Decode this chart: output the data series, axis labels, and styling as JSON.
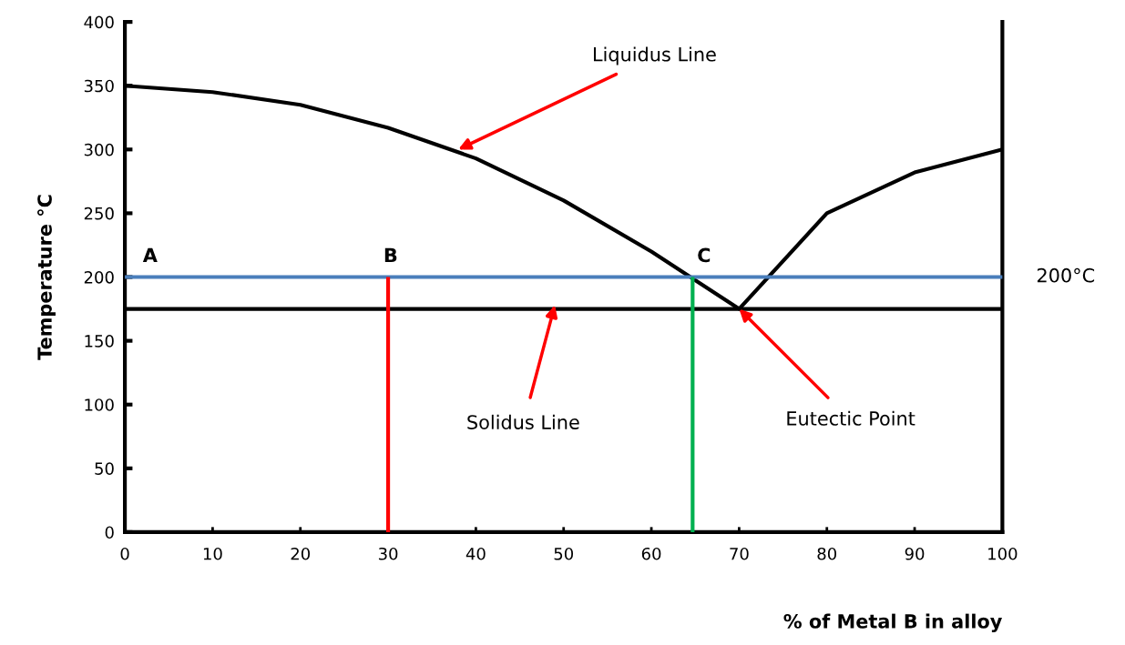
{
  "chart_data": {
    "type": "line",
    "xlabel": "% of Metal B in alloy",
    "ylabel": "Temperature °C",
    "xlim": [
      0,
      100
    ],
    "ylim": [
      0,
      400
    ],
    "xticks": [
      0,
      10,
      20,
      30,
      40,
      50,
      60,
      70,
      80,
      90,
      100
    ],
    "yticks": [
      0,
      50,
      100,
      150,
      200,
      250,
      300,
      350,
      400
    ],
    "grid": false,
    "legend": false,
    "marker": "none",
    "line_style": "solid",
    "series": [
      {
        "color": "#000000",
        "x": [
          0,
          10,
          20,
          30,
          40,
          50,
          60,
          70,
          80,
          90,
          100
        ],
        "values": [
          350,
          345,
          335,
          317,
          293,
          260,
          220,
          175,
          250,
          282,
          300
        ]
      },
      {
        "color": "#000000",
        "x": [
          0,
          100
        ],
        "values": [
          175,
          175
        ]
      },
      {
        "color": "#4a7ebb",
        "x": [
          0,
          100
        ],
        "values": [
          200,
          200
        ]
      },
      {
        "color": "#ff0000",
        "x": [
          30,
          30
        ],
        "values": [
          0,
          200
        ]
      },
      {
        "color": "#00b050",
        "x": [
          64.7,
          64.7
        ],
        "values": [
          0,
          200
        ]
      }
    ],
    "annotations": [
      {
        "text": "Liquidus Line",
        "x": 38,
        "y": 300
      },
      {
        "text": "Solidus Line",
        "x": 49,
        "y": 178
      },
      {
        "text": "Eutectic Point",
        "x": 70,
        "y": 175
      },
      {
        "text": "A",
        "x": 0,
        "y": 200
      },
      {
        "text": "B",
        "x": 30,
        "y": 200
      },
      {
        "text": "C",
        "x": 64.7,
        "y": 200
      },
      {
        "text": "200°C",
        "x": 100,
        "y": 200
      }
    ]
  }
}
